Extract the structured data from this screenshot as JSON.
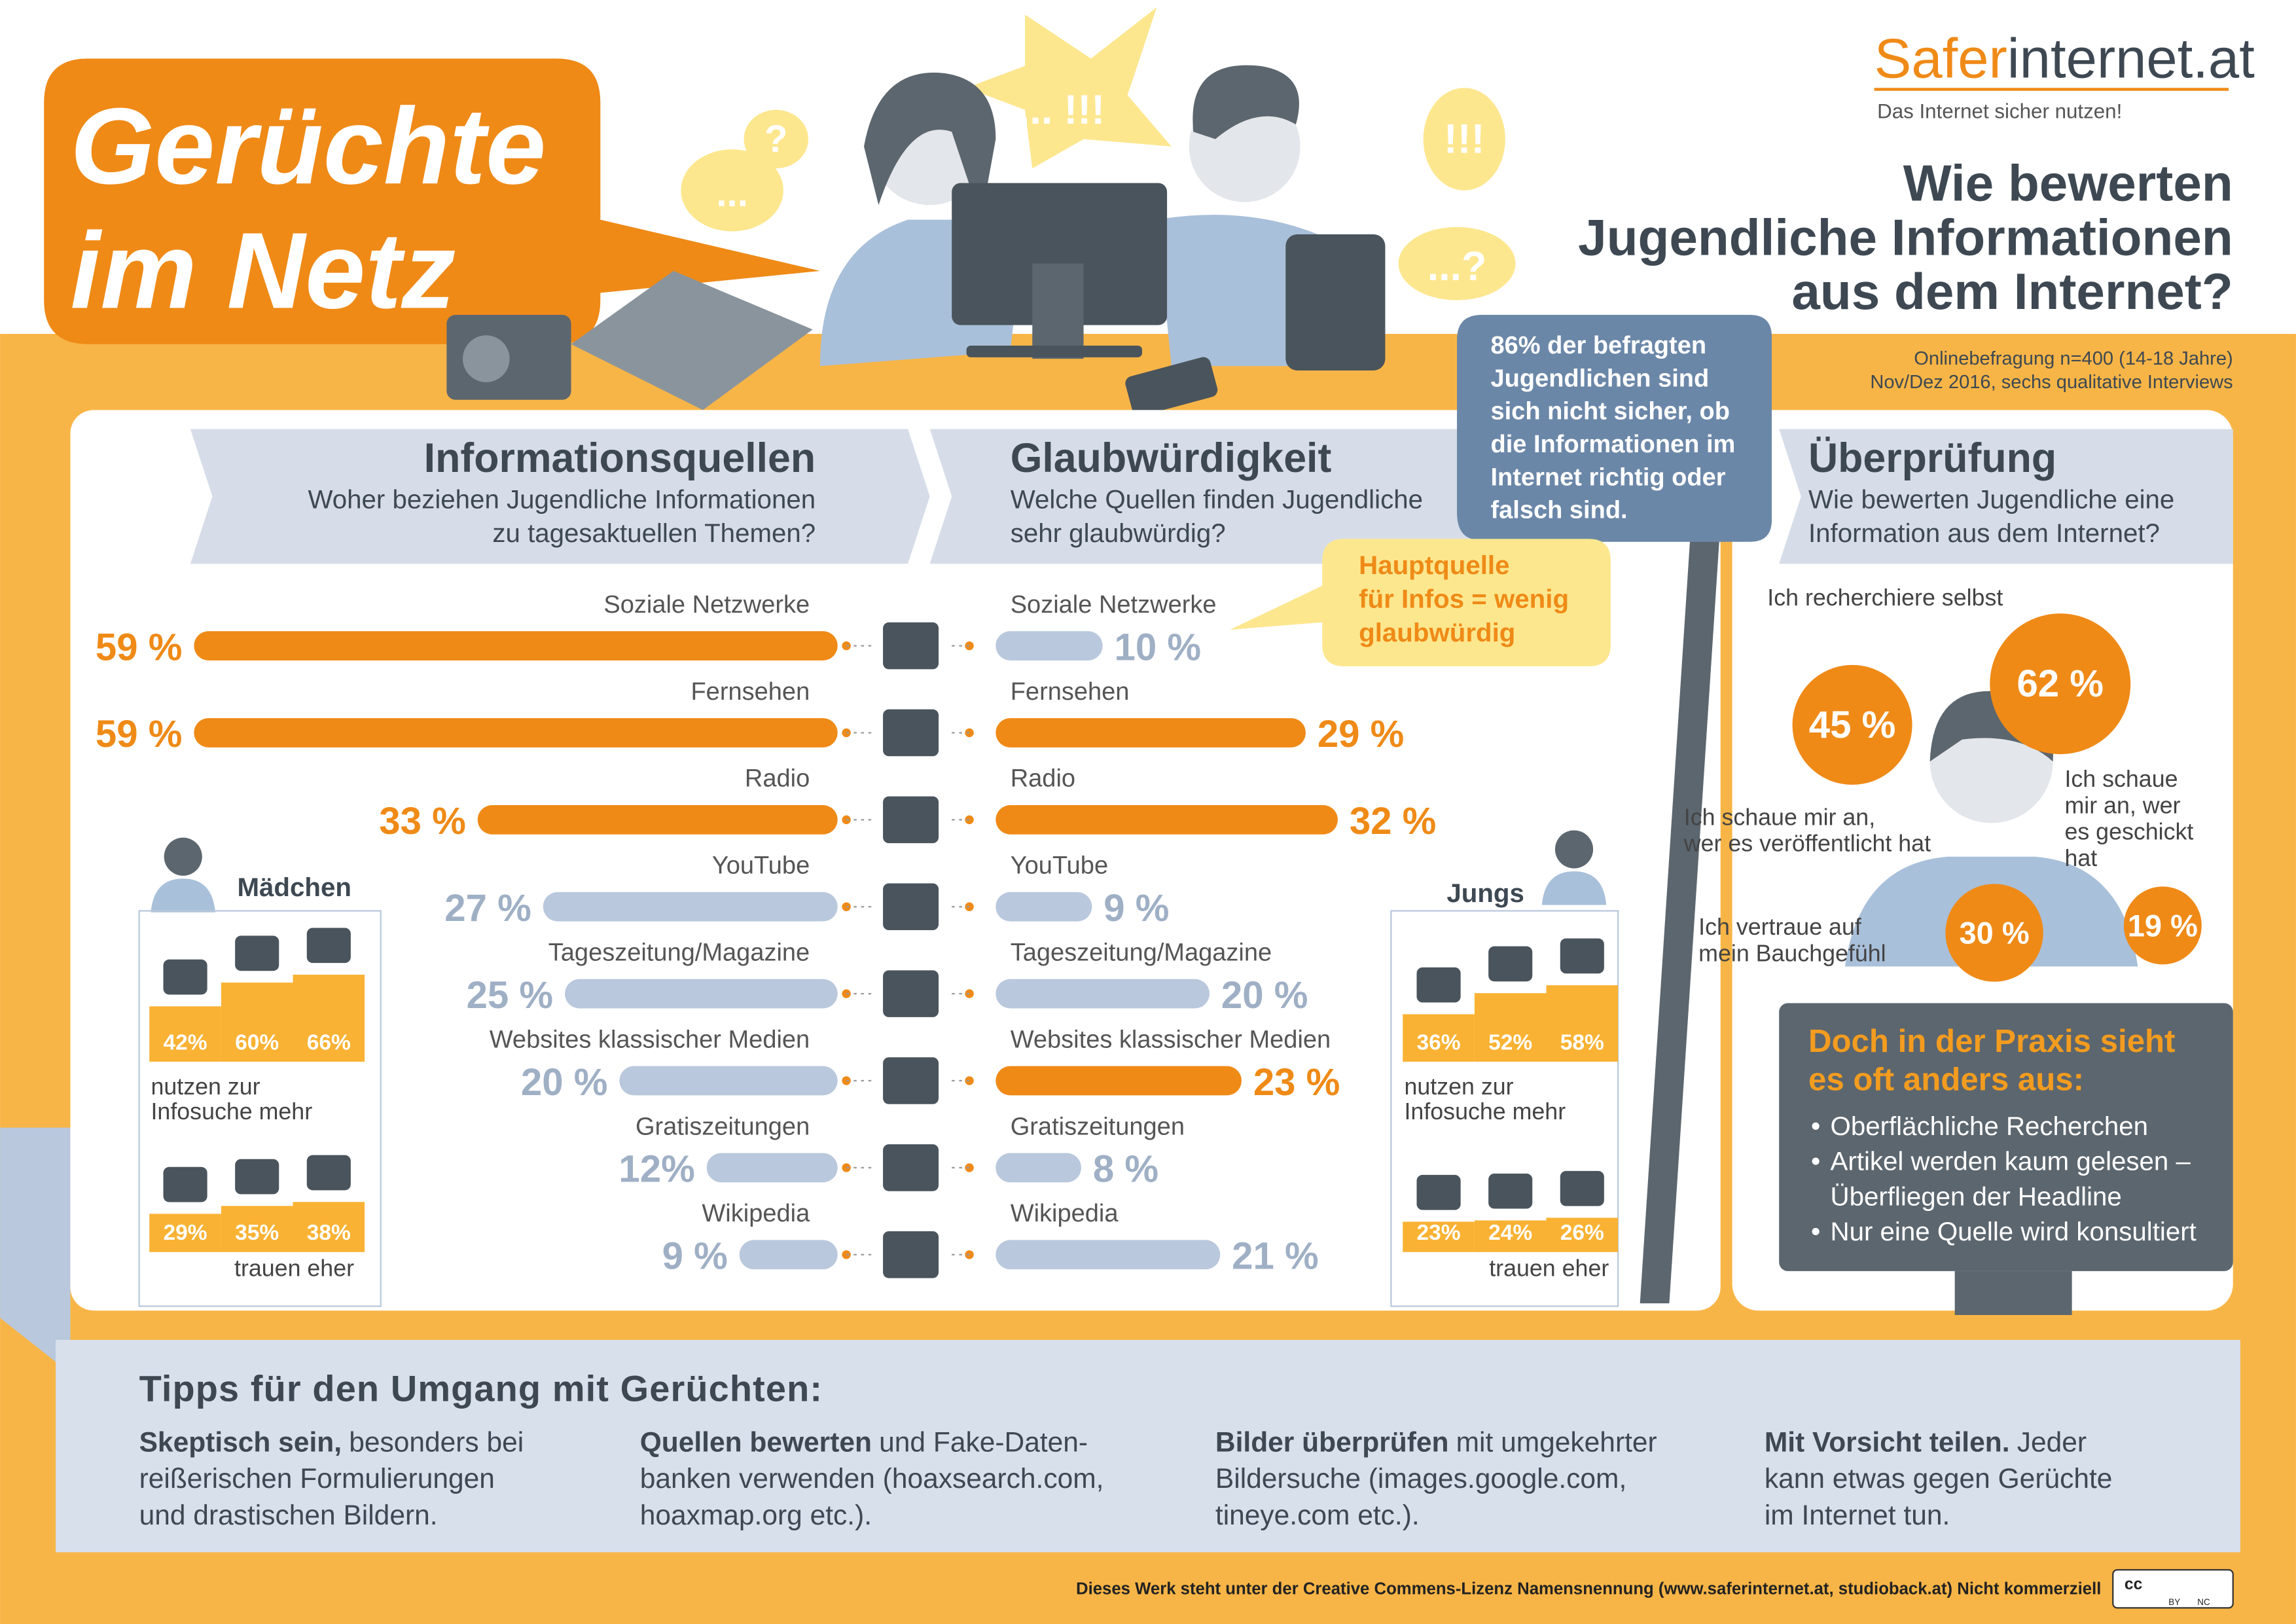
{
  "header": {
    "title": [
      "Gerüchte",
      "im Netz"
    ],
    "logo": {
      "brand_a": "Safer",
      "brand_b": "internet.at",
      "tagline": "Das Internet sicher nutzen!"
    },
    "question": [
      "Wie bewerten",
      "Jugendliche Informationen",
      "aus dem Internet?"
    ],
    "method": [
      "Onlinebefragung n=400 (14-18 Jahre)",
      "Nov/Dez 2016, sechs qualitative Interviews"
    ],
    "callout": [
      "86% der befragten",
      "Jugendlichen sind",
      "sich nicht sicher, ob",
      "die Informationen im",
      "Internet richtig oder",
      "falsch sind."
    ],
    "illustration_bubbles": [
      "...",
      "?",
      "... !!!",
      "!!!",
      "...?"
    ]
  },
  "chart_data": [
    {
      "type": "bar",
      "title": "Informationsquellen",
      "subtitle": [
        "Woher beziehen Jugendliche Informationen",
        "zu tagesaktuellen Themen?"
      ],
      "categories": [
        "Soziale Netzwerke",
        "Fernsehen",
        "Radio",
        "YouTube",
        "Tageszeitung/Magazine",
        "Websites klassischer Medien",
        "Gratiszeitungen",
        "Wikipedia"
      ],
      "values": [
        59,
        59,
        33,
        27,
        25,
        20,
        12,
        9
      ],
      "value_labels": [
        "59 %",
        "59 %",
        "33 %",
        "27 %",
        "25 %",
        "20 %",
        "12%",
        "9 %"
      ],
      "colors": [
        "#ef8a17",
        "#ef8a17",
        "#ef8a17",
        "#b9c8dc",
        "#b9c8dc",
        "#b9c8dc",
        "#b9c8dc",
        "#b9c8dc"
      ]
    },
    {
      "type": "bar",
      "title": "Glaubwürdigkeit",
      "subtitle": [
        "Welche Quellen finden Jugendliche",
        "sehr glaubwürdig?"
      ],
      "categories": [
        "Soziale Netzwerke",
        "Fernsehen",
        "Radio",
        "YouTube",
        "Tageszeitung/Magazine",
        "Websites klassischer Medien",
        "Gratiszeitungen",
        "Wikipedia"
      ],
      "values": [
        10,
        29,
        32,
        9,
        20,
        23,
        8,
        21
      ],
      "value_labels": [
        "10 %",
        "29 %",
        "32 %",
        "9 %",
        "20 %",
        "23 %",
        "8 %",
        "21 %"
      ],
      "colors": [
        "#b9c8dc",
        "#ef8a17",
        "#ef8a17",
        "#b9c8dc",
        "#b9c8dc",
        "#ef8a17",
        "#b9c8dc",
        "#b9c8dc"
      ],
      "annotation": [
        "Hauptquelle",
        "für Infos = wenig",
        "glaubwürdig"
      ]
    },
    {
      "type": "step",
      "title": "Mädchen",
      "series": [
        {
          "caption": [
            "nutzen zur",
            "Infosuche mehr"
          ],
          "values": [
            42,
            60,
            66
          ],
          "value_labels": [
            "42%",
            "60%",
            "66%"
          ],
          "color": "#f9b233"
        },
        {
          "caption": [
            "trauen eher"
          ],
          "values": [
            29,
            35,
            38
          ],
          "value_labels": [
            "29%",
            "35%",
            "38%"
          ],
          "color": "#f9b233"
        }
      ]
    },
    {
      "type": "step",
      "title": "Jungs",
      "series": [
        {
          "caption": [
            "nutzen zur",
            "Infosuche mehr"
          ],
          "values": [
            36,
            52,
            58
          ],
          "value_labels": [
            "36%",
            "52%",
            "58%"
          ],
          "color": "#f9b233"
        },
        {
          "caption": [
            "trauen eher"
          ],
          "values": [
            23,
            24,
            26
          ],
          "value_labels": [
            "23%",
            "24%",
            "26%"
          ],
          "color": "#f9b233"
        }
      ]
    },
    {
      "type": "bubble",
      "title": "Überprüfung",
      "subtitle": [
        "Wie bewerten Jugendliche eine",
        "Information aus dem Internet?"
      ],
      "categories": [
        [
          "Ich recherchiere selbst"
        ],
        [
          "Ich schaue mir an,",
          "wer es veröffentlicht hat"
        ],
        [
          "Ich vertraue auf",
          "mein Bauchgefühl"
        ],
        [
          "Ich schaue",
          "mir an, wer",
          "es geschickt",
          "hat"
        ]
      ],
      "values": [
        62,
        45,
        30,
        19
      ],
      "value_labels": [
        "62 %",
        "45 %",
        "30 %",
        "19 %"
      ],
      "color": "#ef8a17"
    }
  ],
  "practice": {
    "title": [
      "Doch in der Praxis sieht",
      "es oft anders aus:"
    ],
    "items": [
      [
        "Oberflächliche Recherchen"
      ],
      [
        "Artikel werden kaum gelesen –",
        "Überfliegen der Headline"
      ],
      [
        "Nur eine Quelle wird konsultiert"
      ]
    ]
  },
  "tips": {
    "title": "Tipps für den Umgang mit Gerüchten:",
    "items": [
      {
        "lead": "Skeptisch sein,",
        "text": [
          "besonders bei",
          "reißerischen Formulierungen",
          "und drastischen Bildern."
        ]
      },
      {
        "lead": "Quellen bewerten",
        "text": [
          "und Fake-Daten-",
          "banken verwenden (hoaxsearch.com,",
          "hoaxmap.org etc.)."
        ]
      },
      {
        "lead": "Bilder überprüfen",
        "text": [
          "mit umgekehrter",
          "Bildersuche (images.google.com,",
          "tineye.com etc.)."
        ]
      },
      {
        "lead": "Mit Vorsicht teilen.",
        "text": [
          "Jeder",
          "kann etwas gegen Gerüchte",
          "im Internet tun."
        ]
      }
    ]
  },
  "footer": {
    "license": "Dieses Werk steht unter der Creative Commens-Lizenz Namensnennung (www.saferinternet.at, studioback.at) Nicht kommerziell",
    "badge": [
      "cc",
      "BY",
      "NC"
    ]
  }
}
